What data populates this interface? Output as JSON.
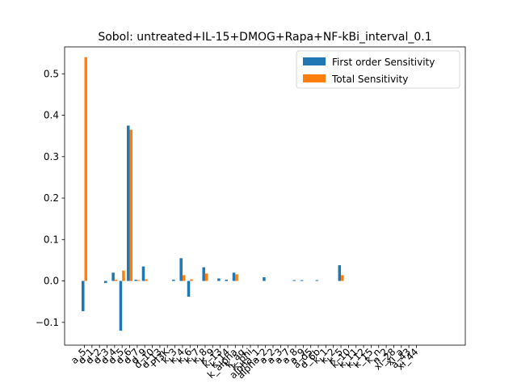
{
  "chart_data": {
    "type": "bar",
    "title": "Sobol: untreated+IL-15+DMOG+Rapa+NF-kBi_interval_0.1",
    "xlabel": "",
    "ylabel": "",
    "ylim": [
      -0.155,
      0.565
    ],
    "yticks": [
      -0.1,
      0.0,
      0.1,
      0.2,
      0.3,
      0.4,
      0.5
    ],
    "ytick_labels": [
      "−0.1",
      "0.0",
      "0.1",
      "0.2",
      "0.3",
      "0.4",
      "0.5"
    ],
    "grid": false,
    "legend_position": "top-right",
    "categories": [
      "a_5",
      "d_1",
      "d_2",
      "d_3",
      "d_4",
      "d_5",
      "d_6",
      "d_7",
      "d_9",
      "d_10",
      "d_13",
      "PI3K",
      "k_3",
      "k_4",
      "k_6",
      "k_7",
      "k_8",
      "k_9",
      "k_13",
      "k_14",
      "k_alpha",
      "k_aq",
      "k_phi",
      "alpha_1",
      "alpha_2",
      "a_2",
      "a_3",
      "a_7",
      "a_8",
      "a_9",
      "a_d5",
      "d_6b",
      "k_1",
      "k_2",
      "k_5",
      "k_10",
      "k_11",
      "k_12",
      "k_15",
      "k_n",
      "n_2",
      "xi_28",
      "xi_a",
      "a_43",
      "xi_44"
    ],
    "series": [
      {
        "name": "First order Sensitivity",
        "color": "#1f77b4",
        "values": [
          -0.073,
          0.0,
          0.0,
          -0.005,
          0.02,
          -0.12,
          0.375,
          0.003,
          0.035,
          0.0,
          0.0,
          0.0,
          0.003,
          0.055,
          -0.038,
          0.0,
          0.033,
          0.0,
          0.006,
          0.003,
          0.02,
          0.0,
          0.0,
          0.0,
          0.009,
          0.0,
          0.0,
          0.0,
          0.002,
          0.002,
          0.0,
          0.002,
          0.0,
          0.0,
          0.038,
          0.0,
          0.0,
          0.0,
          0.0,
          0.0,
          0.0,
          0.0,
          0.0,
          0.0,
          0.0
        ]
      },
      {
        "name": "Total Sensitivity",
        "color": "#ff7f0e",
        "values": [
          0.54,
          0.0,
          0.0,
          0.0,
          0.003,
          0.025,
          0.365,
          0.002,
          0.004,
          0.0,
          0.0,
          0.0,
          0.0,
          0.014,
          0.004,
          0.0,
          0.018,
          0.0,
          0.0,
          0.0,
          0.016,
          0.0,
          0.0,
          0.0,
          0.0,
          0.0,
          0.0,
          0.0,
          0.0,
          0.0,
          0.0,
          0.0,
          0.0,
          0.0,
          0.014,
          0.0,
          0.0,
          0.0,
          0.0,
          0.0,
          0.0,
          0.0,
          0.0,
          0.0,
          0.0
        ]
      }
    ]
  }
}
